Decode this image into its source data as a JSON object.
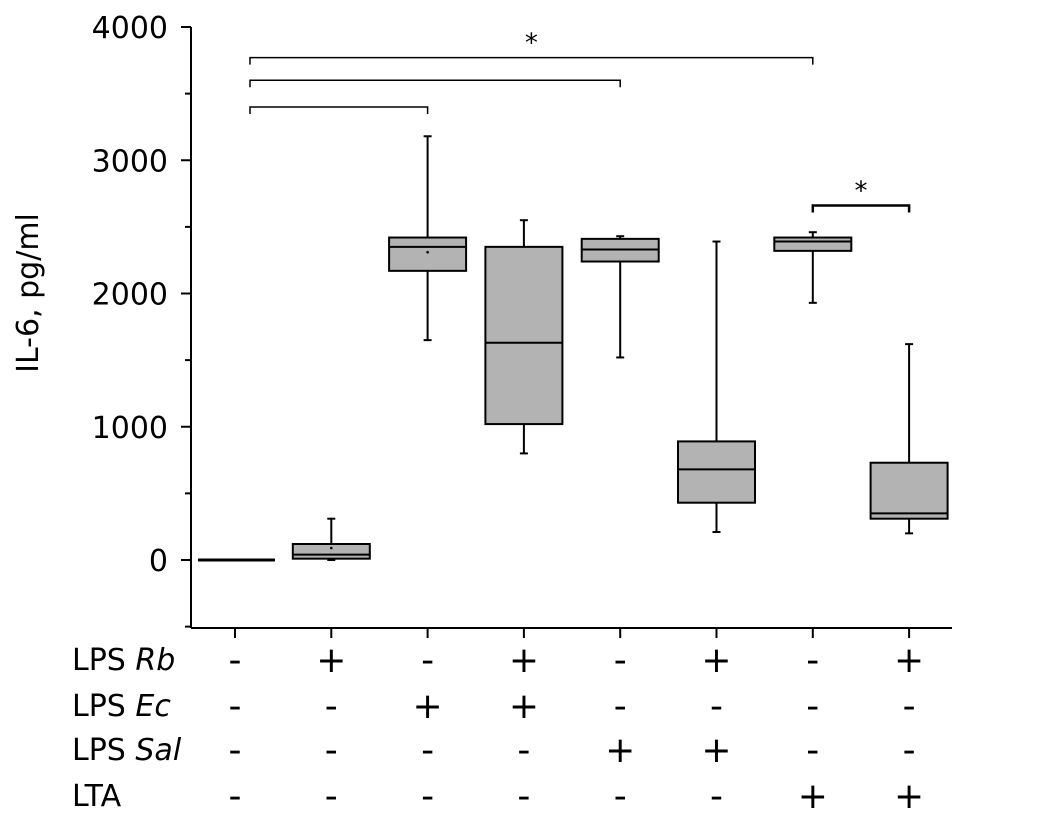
{
  "chart_data": {
    "type": "box",
    "ylabel": "IL-6, pg/ml",
    "ylim": [
      -500,
      4000
    ],
    "yticks": [
      0,
      1000,
      2000,
      3000,
      4000
    ],
    "groups": [
      {
        "min": 0,
        "q1": 0,
        "median": 0,
        "q3": 0,
        "max": 0,
        "mean": 0
      },
      {
        "min": 0,
        "q1": 10,
        "median": 40,
        "q3": 120,
        "max": 310,
        "mean": 90
      },
      {
        "min": 1650,
        "q1": 2170,
        "median": 2350,
        "q3": 2420,
        "max": 3180,
        "mean": 2310
      },
      {
        "min": 800,
        "q1": 1020,
        "median": 1630,
        "q3": 2350,
        "max": 2550,
        "mean": null
      },
      {
        "min": 1520,
        "q1": 2240,
        "median": 2330,
        "q3": 2410,
        "max": 2430,
        "mean": null
      },
      {
        "min": 210,
        "q1": 430,
        "median": 680,
        "q3": 890,
        "max": 2390,
        "mean": null
      },
      {
        "min": 1930,
        "q1": 2320,
        "median": 2390,
        "q3": 2420,
        "max": 2460,
        "mean": null
      },
      {
        "min": 200,
        "q1": 310,
        "median": 350,
        "q3": 730,
        "max": 1620,
        "mean": null
      }
    ],
    "conditions": [
      {
        "label": "LPS ",
        "italic": "Rb",
        "signs": [
          "-",
          "+",
          "-",
          "+",
          "-",
          "+",
          "-",
          "+"
        ]
      },
      {
        "label": "LPS ",
        "italic": "Ec",
        "signs": [
          "-",
          "-",
          "+",
          "+",
          "-",
          "-",
          "-",
          "-"
        ]
      },
      {
        "label": "LPS ",
        "italic": "Sal",
        "signs": [
          "-",
          "-",
          "-",
          "-",
          "+",
          "+",
          "-",
          "-"
        ]
      },
      {
        "label": "LTA",
        "italic": "",
        "signs": [
          "-",
          "-",
          "-",
          "-",
          "-",
          "-",
          "+",
          "+"
        ]
      }
    ],
    "significance": [
      {
        "from": 0,
        "to": 6,
        "y": 3770,
        "label": "*"
      },
      {
        "from": 0,
        "to": 4,
        "y": 3600,
        "label": ""
      },
      {
        "from": 0,
        "to": 2,
        "y": 3400,
        "label": ""
      },
      {
        "from": 6,
        "to": 7,
        "y": 2660,
        "label": "*"
      }
    ],
    "colors": {
      "box_fill": "#b3b3b3",
      "stroke": "#000000"
    }
  }
}
